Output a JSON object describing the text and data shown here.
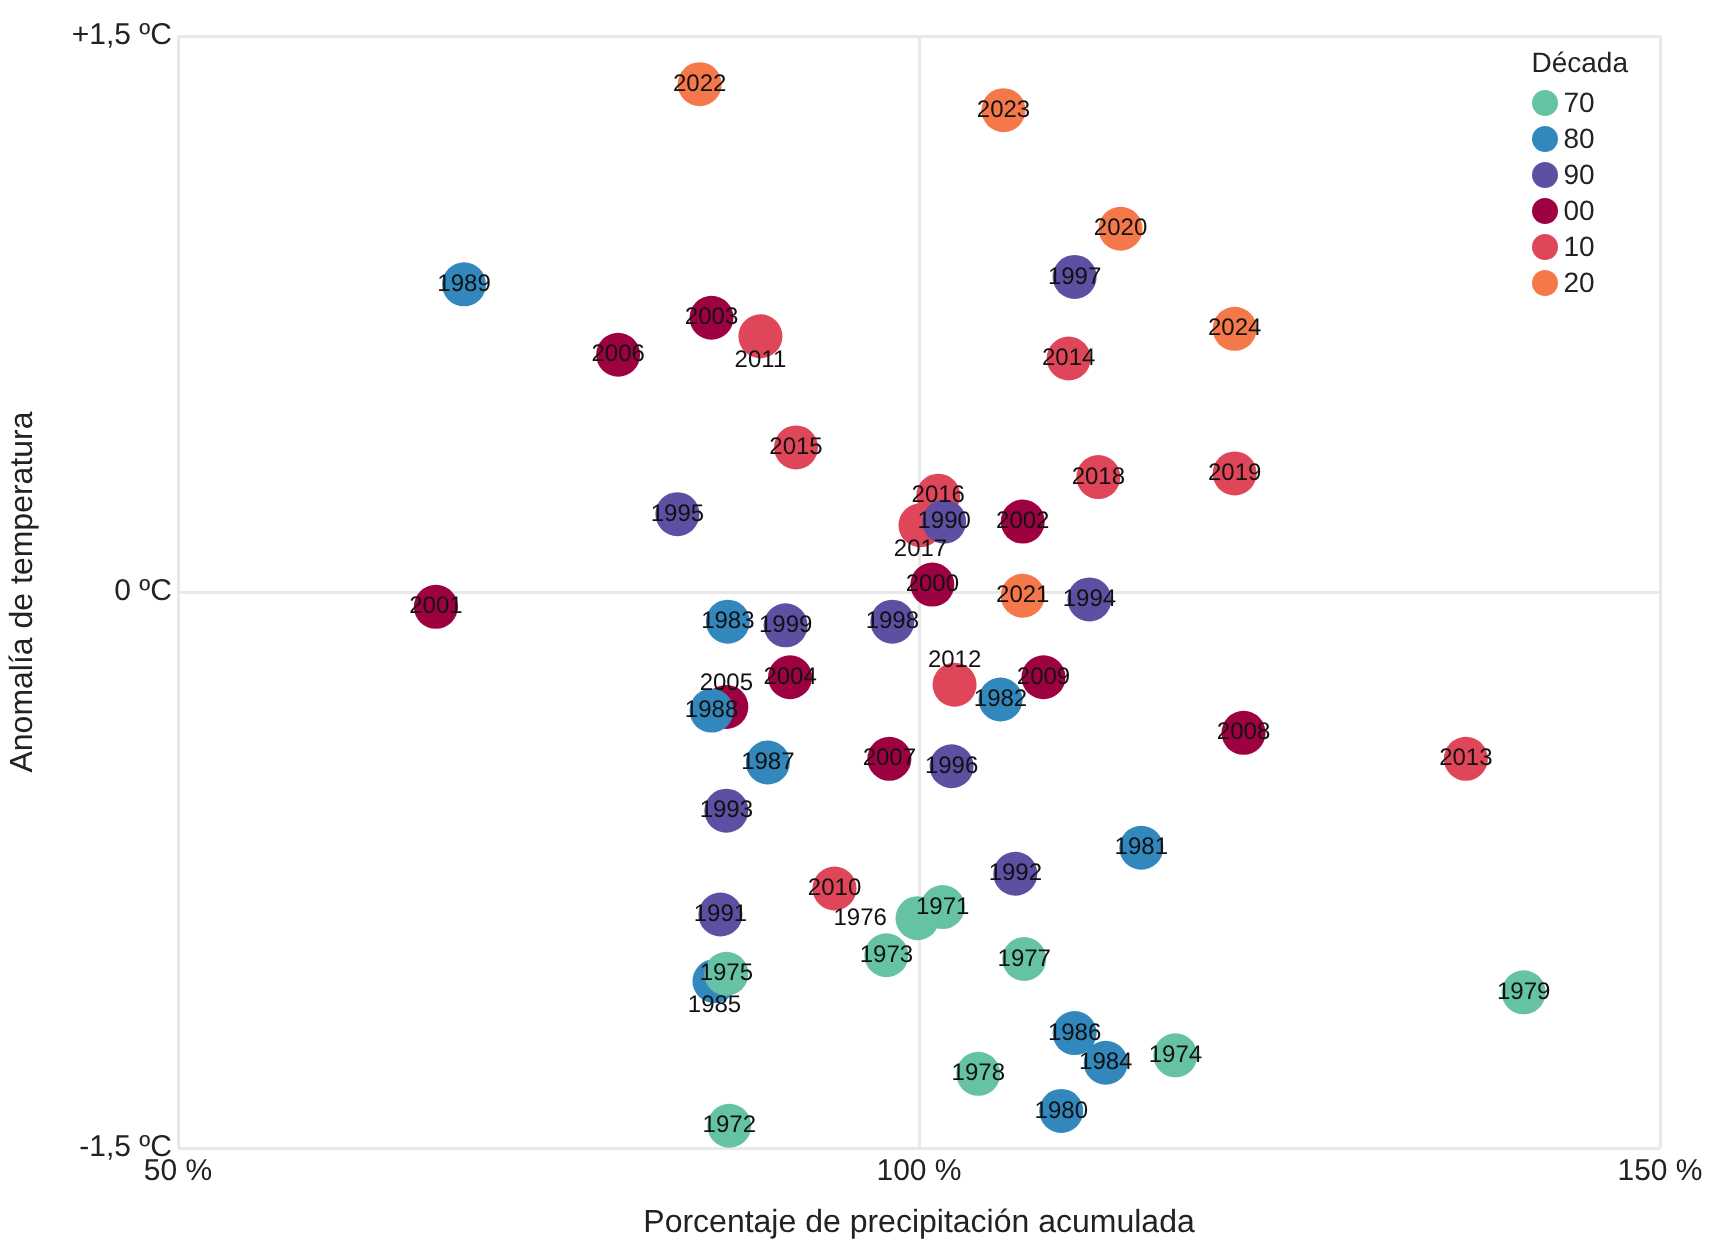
{
  "chart_data": {
    "type": "scatter",
    "xlabel": "Porcentaje de precipitación acumulada",
    "ylabel": "Anomalía de temperatura",
    "legend_title": "Década",
    "legend": "top right",
    "marker": "circle",
    "grid": true,
    "xlim": [
      50,
      150
    ],
    "xticks": [
      {
        "value": 50,
        "label": "50 %"
      },
      {
        "value": 100,
        "label": "100 %"
      },
      {
        "value": 150,
        "label": "150 %"
      }
    ],
    "ylim": [
      -1.5,
      1.5
    ],
    "yticks": [
      {
        "value": -1.5,
        "label": "-1,5 ºC"
      },
      {
        "value": 0,
        "label": "0 ºC"
      },
      {
        "value": 1.5,
        "label": "+1,5 ºC"
      }
    ],
    "series": [
      {
        "name": "70",
        "color": "#66c2a5",
        "x": [
          101.6,
          87.2,
          97.8,
          117.3,
          87.0,
          99.9,
          107.1,
          104.0,
          140.8
        ],
        "values": [
          -0.85,
          -1.44,
          -0.98,
          -1.25,
          -1.03,
          -0.88,
          -0.99,
          -1.3,
          -1.08
        ]
      },
      {
        "name": "80",
        "color": "#3288bd",
        "x": [
          109.6,
          115.0,
          105.5,
          87.1,
          112.6,
          86.2,
          110.5,
          89.8,
          86.0,
          69.3
        ],
        "values": [
          -1.4,
          -0.69,
          -0.29,
          -0.08,
          -1.27,
          -1.05,
          -1.19,
          -0.46,
          -0.32,
          0.83
        ]
      },
      {
        "name": "90",
        "color": "#5e4fa2",
        "x": [
          101.7,
          86.6,
          106.5,
          87.0,
          111.5,
          83.7,
          102.2,
          110.5,
          98.2,
          91.0
        ],
        "values": [
          0.19,
          -0.87,
          -0.76,
          -0.59,
          -0.02,
          0.21,
          -0.47,
          0.85,
          -0.08,
          -0.09
        ]
      },
      {
        "name": "00",
        "color": "#9e0142",
        "x": [
          100.9,
          67.4,
          107.0,
          86.0,
          91.3,
          87.0,
          79.7,
          98.0,
          121.9,
          108.4
        ],
        "values": [
          0.02,
          -0.04,
          0.19,
          0.74,
          -0.23,
          -0.31,
          0.64,
          -0.45,
          -0.38,
          -0.23
        ]
      },
      {
        "name": "10",
        "color": "#e0465a",
        "x": [
          94.3,
          89.3,
          102.4,
          136.9,
          110.1,
          91.7,
          101.3,
          100.1,
          112.1,
          121.3
        ],
        "values": [
          -0.8,
          0.69,
          -0.25,
          -0.45,
          0.63,
          0.39,
          0.26,
          0.18,
          0.31,
          0.32
        ]
      },
      {
        "name": "20",
        "color": "#f4784a",
        "x": [
          113.6,
          107.0,
          85.2,
          105.7,
          121.3
        ],
        "values": [
          0.98,
          -0.01,
          1.37,
          1.3,
          0.71
        ]
      }
    ],
    "annotations": [
      {
        "text": "1971",
        "x": 101.6,
        "y": -0.85
      },
      {
        "text": "1972",
        "x": 87.2,
        "y": -1.44
      },
      {
        "text": "1973",
        "x": 97.8,
        "y": -0.98
      },
      {
        "text": "1974",
        "x": 117.3,
        "y": -1.25
      },
      {
        "text": "1975",
        "x": 87.0,
        "y": -1.03
      },
      {
        "text": "1976",
        "x": 99.9,
        "y": -0.88
      },
      {
        "text": "1977",
        "x": 107.1,
        "y": -0.99
      },
      {
        "text": "1978",
        "x": 104.0,
        "y": -1.3
      },
      {
        "text": "1979",
        "x": 140.8,
        "y": -1.08
      },
      {
        "text": "1980",
        "x": 109.6,
        "y": -1.4
      },
      {
        "text": "1981",
        "x": 115.0,
        "y": -0.69
      },
      {
        "text": "1982",
        "x": 105.5,
        "y": -0.29
      },
      {
        "text": "1983",
        "x": 87.1,
        "y": -0.08
      },
      {
        "text": "1984",
        "x": 112.6,
        "y": -1.27
      },
      {
        "text": "1985",
        "x": 86.2,
        "y": -1.05
      },
      {
        "text": "1986",
        "x": 110.5,
        "y": -1.19
      },
      {
        "text": "1987",
        "x": 89.8,
        "y": -0.46
      },
      {
        "text": "1988",
        "x": 86.0,
        "y": -0.32
      },
      {
        "text": "1989",
        "x": 69.3,
        "y": 0.83
      },
      {
        "text": "1990",
        "x": 101.7,
        "y": 0.19
      },
      {
        "text": "1991",
        "x": 86.6,
        "y": -0.87
      },
      {
        "text": "1992",
        "x": 106.5,
        "y": -0.76
      },
      {
        "text": "1993",
        "x": 87.0,
        "y": -0.59
      },
      {
        "text": "1994",
        "x": 111.5,
        "y": -0.02
      },
      {
        "text": "1995",
        "x": 83.7,
        "y": 0.21
      },
      {
        "text": "1996",
        "x": 102.2,
        "y": -0.47
      },
      {
        "text": "1997",
        "x": 110.5,
        "y": 0.85
      },
      {
        "text": "1998",
        "x": 98.2,
        "y": -0.08
      },
      {
        "text": "1999",
        "x": 91.0,
        "y": -0.09
      },
      {
        "text": "2000",
        "x": 100.9,
        "y": 0.02
      },
      {
        "text": "2001",
        "x": 67.4,
        "y": -0.04
      },
      {
        "text": "2002",
        "x": 107.0,
        "y": 0.19
      },
      {
        "text": "2003",
        "x": 86.0,
        "y": 0.74
      },
      {
        "text": "2004",
        "x": 91.3,
        "y": -0.23
      },
      {
        "text": "2005",
        "x": 87.0,
        "y": -0.31
      },
      {
        "text": "2006",
        "x": 79.7,
        "y": 0.64
      },
      {
        "text": "2007",
        "x": 98.0,
        "y": -0.45
      },
      {
        "text": "2008",
        "x": 121.9,
        "y": -0.38
      },
      {
        "text": "2009",
        "x": 108.4,
        "y": -0.23
      },
      {
        "text": "2010",
        "x": 94.3,
        "y": -0.8
      },
      {
        "text": "2011",
        "x": 89.3,
        "y": 0.69
      },
      {
        "text": "2012",
        "x": 102.4,
        "y": -0.25
      },
      {
        "text": "2013",
        "x": 136.9,
        "y": -0.45
      },
      {
        "text": "2014",
        "x": 110.1,
        "y": 0.63
      },
      {
        "text": "2015",
        "x": 91.7,
        "y": 0.39
      },
      {
        "text": "2016",
        "x": 101.3,
        "y": 0.26
      },
      {
        "text": "2017",
        "x": 100.1,
        "y": 0.18
      },
      {
        "text": "2018",
        "x": 112.1,
        "y": 0.31
      },
      {
        "text": "2019",
        "x": 121.3,
        "y": 0.32
      },
      {
        "text": "2020",
        "x": 113.6,
        "y": 0.98
      },
      {
        "text": "2021",
        "x": 107.0,
        "y": -0.01
      },
      {
        "text": "2022",
        "x": 85.2,
        "y": 1.37
      },
      {
        "text": "2023",
        "x": 105.7,
        "y": 1.3
      },
      {
        "text": "2024",
        "x": 121.3,
        "y": 0.71
      }
    ]
  }
}
